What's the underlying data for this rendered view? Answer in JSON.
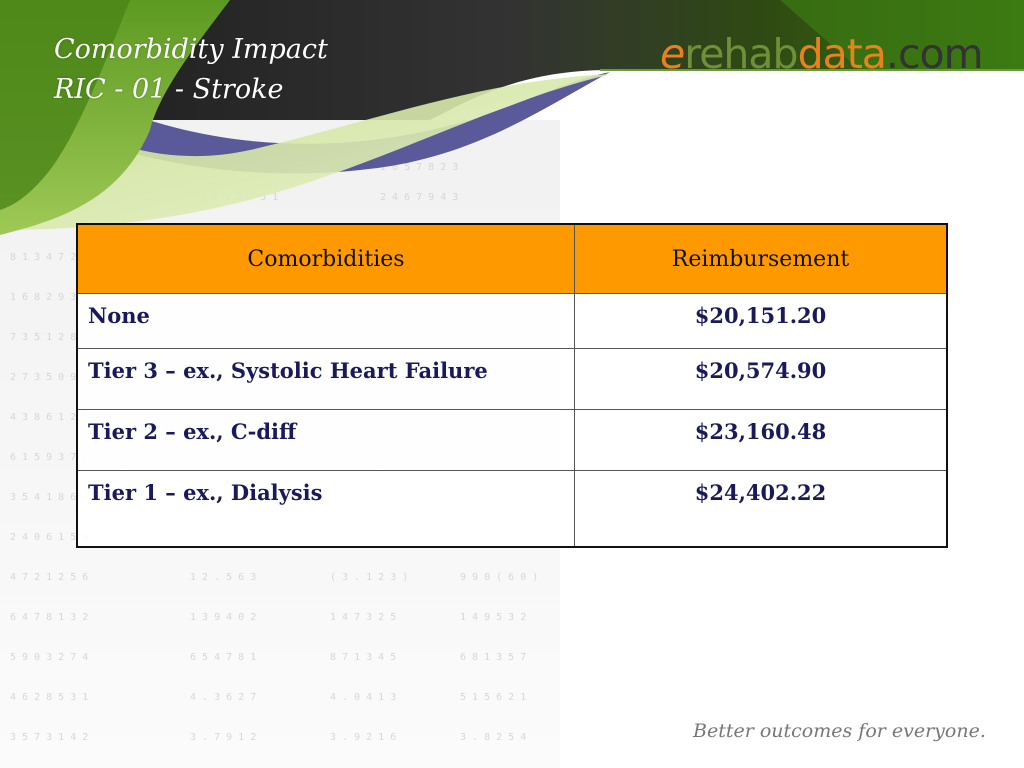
{
  "slide": {
    "title_line1": "Comorbidity Impact",
    "title_line2": "RIC - 01 - Stroke"
  },
  "logo": {
    "e": "e",
    "rehab": "rehab",
    "data": "data",
    "com": ".com"
  },
  "table": {
    "headers": [
      "Comorbidities",
      "Reimbursement"
    ],
    "rows": [
      {
        "label": "None",
        "value": "$20,151.20"
      },
      {
        "label": "Tier 3 – ex., Systolic Heart Failure",
        "value": "$20,574.90"
      },
      {
        "label": "Tier 2 – ex., C-diff",
        "value": "$23,160.48"
      },
      {
        "label": "Tier 1 – ex., Dialysis",
        "value": "$24,402.22"
      }
    ]
  },
  "tagline": "Better outcomes for everyone.",
  "colors": {
    "header_fill": "#ff9900",
    "body_text": "#1a1a5a",
    "banner_green": "#5a8a1e",
    "banner_dark": "#2a2a2a",
    "swoosh_purple": "#5a5a9a",
    "logo_orange": "#e8821c"
  }
}
